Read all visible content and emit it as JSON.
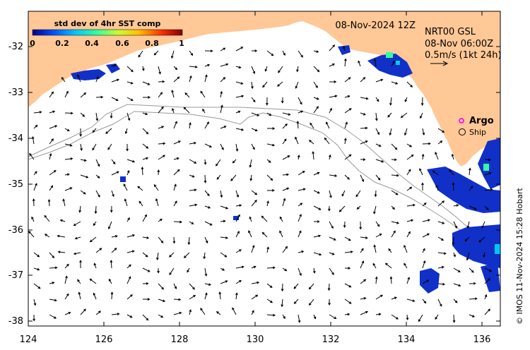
{
  "map": {
    "date_title": "08-Nov-2024 12Z",
    "product": "NRT00 GSL",
    "product_time": "08-Nov 06:00Z",
    "scale_label": "0.5m/s (1kt 24h)",
    "credit": "© IMOS 11-Nov-2024 15:28 Hobart",
    "x_ticks": [
      "124",
      "126",
      "128",
      "130",
      "132",
      "134",
      "136"
    ],
    "y_ticks": [
      "-32",
      "-33",
      "-34",
      "-35",
      "-36",
      "-37",
      "-38"
    ]
  },
  "colorbar": {
    "title": "std dev of 4hr SST comp",
    "labels": [
      "0",
      "0.2",
      "0.4",
      "0.6",
      "0.8",
      "1"
    ],
    "stops": [
      "#00008f",
      "#0050ff",
      "#00c8ff",
      "#30ff9f",
      "#c8ff30",
      "#ffbf00",
      "#ff3000",
      "#800000"
    ]
  },
  "legend": {
    "argo_label": "Argo",
    "ship_label": "Ship",
    "argo_color": "#ff00ff"
  },
  "colors": {
    "land": "#ffc896",
    "sst_blue": "#1030c8",
    "isobath": "#999999"
  }
}
